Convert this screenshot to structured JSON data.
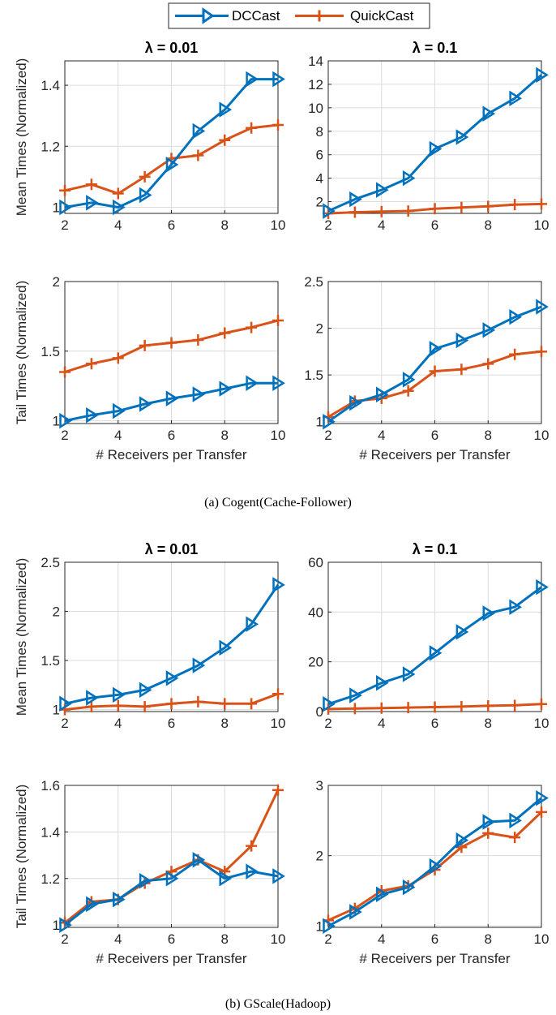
{
  "legend": {
    "items": [
      "DCCast",
      "QuickCast"
    ]
  },
  "colors": {
    "DCCast": "#0072BD",
    "QuickCast": "#D95319"
  },
  "captions": [
    "(a)  Cogent(Cache-Follower)",
    "(b)  GScale(Hadoop)"
  ],
  "chart_data": [
    {
      "type": "line",
      "panel": "a-mean-001",
      "title": "λ = 0.01",
      "xlabel": "",
      "ylabel": "Mean Times (Normalized)",
      "x": [
        2,
        3,
        4,
        5,
        6,
        7,
        8,
        9,
        10
      ],
      "xticks": [
        "2",
        "4",
        "6",
        "8",
        "10"
      ],
      "ylim": [
        0.98,
        1.48
      ],
      "yticks": [
        "1",
        "1.2",
        "1.4"
      ],
      "series": [
        {
          "name": "DCCast",
          "values": [
            1.0,
            1.015,
            1.0,
            1.04,
            1.14,
            1.25,
            1.32,
            1.42,
            1.42
          ]
        },
        {
          "name": "QuickCast",
          "values": [
            1.055,
            1.075,
            1.045,
            1.1,
            1.16,
            1.17,
            1.22,
            1.26,
            1.27
          ]
        }
      ]
    },
    {
      "type": "line",
      "panel": "a-mean-01",
      "title": "λ = 0.1",
      "xlabel": "",
      "ylabel": "",
      "x": [
        2,
        3,
        4,
        5,
        6,
        7,
        8,
        9,
        10
      ],
      "xticks": [
        "2",
        "4",
        "6",
        "8",
        "10"
      ],
      "ylim": [
        1,
        14
      ],
      "yticks": [
        "2",
        "4",
        "6",
        "8",
        "10",
        "12",
        "14"
      ],
      "series": [
        {
          "name": "DCCast",
          "values": [
            1.2,
            2.2,
            3.0,
            4.0,
            6.5,
            7.5,
            9.5,
            10.8,
            12.8
          ]
        },
        {
          "name": "QuickCast",
          "values": [
            1.0,
            1.1,
            1.15,
            1.2,
            1.4,
            1.5,
            1.6,
            1.75,
            1.8
          ]
        }
      ]
    },
    {
      "type": "line",
      "panel": "a-tail-001",
      "title": "",
      "xlabel": "# Receivers per Transfer",
      "ylabel": "Tail Times (Normalized)",
      "x": [
        2,
        3,
        4,
        5,
        6,
        7,
        8,
        9,
        10
      ],
      "xticks": [
        "2",
        "4",
        "6",
        "8",
        "10"
      ],
      "ylim": [
        0.98,
        2.0
      ],
      "yticks": [
        "1",
        "1.5",
        "2"
      ],
      "series": [
        {
          "name": "DCCast",
          "values": [
            1.0,
            1.04,
            1.07,
            1.12,
            1.16,
            1.19,
            1.23,
            1.27,
            1.27
          ]
        },
        {
          "name": "QuickCast",
          "values": [
            1.35,
            1.41,
            1.45,
            1.54,
            1.56,
            1.58,
            1.63,
            1.67,
            1.72
          ]
        }
      ]
    },
    {
      "type": "line",
      "panel": "a-tail-01",
      "title": "",
      "xlabel": "# Receivers per Transfer",
      "ylabel": "",
      "x": [
        2,
        3,
        4,
        5,
        6,
        7,
        8,
        9,
        10
      ],
      "xticks": [
        "2",
        "4",
        "6",
        "8",
        "10"
      ],
      "ylim": [
        0.98,
        2.5
      ],
      "yticks": [
        "1",
        "1.5",
        "2",
        "2.5"
      ],
      "series": [
        {
          "name": "DCCast",
          "values": [
            1.0,
            1.2,
            1.29,
            1.45,
            1.78,
            1.87,
            1.98,
            2.12,
            2.23
          ]
        },
        {
          "name": "QuickCast",
          "values": [
            1.05,
            1.22,
            1.25,
            1.33,
            1.54,
            1.56,
            1.62,
            1.72,
            1.75
          ]
        }
      ]
    },
    {
      "type": "line",
      "panel": "b-mean-001",
      "title": "λ = 0.01",
      "xlabel": "",
      "ylabel": "Mean Times (Normalized)",
      "x": [
        2,
        3,
        4,
        5,
        6,
        7,
        8,
        9,
        10
      ],
      "xticks": [
        "2",
        "4",
        "6",
        "8",
        "10"
      ],
      "ylim": [
        0.98,
        2.5
      ],
      "yticks": [
        "1",
        "1.5",
        "2",
        "2.5"
      ],
      "series": [
        {
          "name": "DCCast",
          "values": [
            1.06,
            1.12,
            1.15,
            1.2,
            1.32,
            1.45,
            1.63,
            1.87,
            2.27
          ]
        },
        {
          "name": "QuickCast",
          "values": [
            1.0,
            1.03,
            1.04,
            1.03,
            1.06,
            1.08,
            1.06,
            1.06,
            1.16
          ]
        }
      ]
    },
    {
      "type": "line",
      "panel": "b-mean-01",
      "title": "λ = 0.1",
      "xlabel": "",
      "ylabel": "",
      "x": [
        2,
        3,
        4,
        5,
        6,
        7,
        8,
        9,
        10
      ],
      "xticks": [
        "2",
        "4",
        "6",
        "8",
        "10"
      ],
      "ylim": [
        0,
        60
      ],
      "yticks": [
        "0",
        "20",
        "40",
        "60"
      ],
      "series": [
        {
          "name": "DCCast",
          "values": [
            3,
            6.5,
            11.5,
            15,
            23.5,
            32,
            39.5,
            42,
            50
          ]
        },
        {
          "name": "QuickCast",
          "values": [
            1,
            1.2,
            1.4,
            1.6,
            1.8,
            2.0,
            2.3,
            2.5,
            3.0
          ]
        }
      ]
    },
    {
      "type": "line",
      "panel": "b-tail-001",
      "title": "",
      "xlabel": "# Receivers per Transfer",
      "ylabel": "Tail Times (Normalized)",
      "x": [
        2,
        3,
        4,
        5,
        6,
        7,
        8,
        9,
        10
      ],
      "xticks": [
        "2",
        "4",
        "6",
        "8",
        "10"
      ],
      "ylim": [
        0.99,
        1.6
      ],
      "yticks": [
        "1",
        "1.2",
        "1.4",
        "1.6"
      ],
      "series": [
        {
          "name": "DCCast",
          "values": [
            1.0,
            1.09,
            1.11,
            1.19,
            1.2,
            1.28,
            1.2,
            1.23,
            1.21
          ]
        },
        {
          "name": "QuickCast",
          "values": [
            1.01,
            1.1,
            1.11,
            1.18,
            1.23,
            1.28,
            1.23,
            1.34,
            1.58
          ]
        }
      ]
    },
    {
      "type": "line",
      "panel": "b-tail-01",
      "title": "",
      "xlabel": "# Receivers per Transfer",
      "ylabel": "",
      "x": [
        2,
        3,
        4,
        5,
        6,
        7,
        8,
        9,
        10
      ],
      "xticks": [
        "2",
        "4",
        "6",
        "8",
        "10"
      ],
      "ylim": [
        0.98,
        3.0
      ],
      "yticks": [
        "1",
        "2",
        "3"
      ],
      "series": [
        {
          "name": "DCCast",
          "values": [
            1.0,
            1.2,
            1.45,
            1.55,
            1.85,
            2.22,
            2.48,
            2.5,
            2.82
          ]
        },
        {
          "name": "QuickCast",
          "values": [
            1.08,
            1.25,
            1.5,
            1.57,
            1.8,
            2.12,
            2.32,
            2.26,
            2.62
          ]
        }
      ]
    }
  ]
}
